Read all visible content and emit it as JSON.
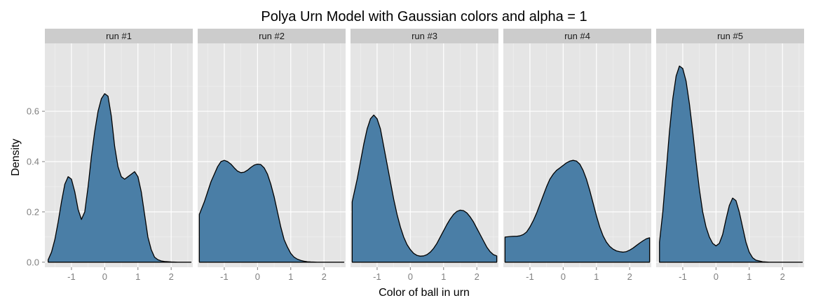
{
  "chart_data": {
    "type": "area",
    "title": "Polya Urn Model with Gaussian colors and alpha = 1",
    "xlabel": "Color of ball in urn",
    "ylabel": "Density",
    "xlim": [
      -1.8,
      2.65
    ],
    "ylim": [
      -0.02,
      0.87
    ],
    "x_ticks": [
      -1,
      0,
      1,
      2
    ],
    "x_tick_labels": [
      "-1",
      "0",
      "1",
      "2"
    ],
    "y_ticks": [
      0.0,
      0.2,
      0.4,
      0.6
    ],
    "y_tick_labels": [
      "0.0",
      "0.2",
      "0.4",
      "0.6"
    ],
    "grid": true,
    "fill_color": "#4a7ea6",
    "line_color": "#000000",
    "panel_bg": "#e5e5e5",
    "strip_bg": "#cccccc",
    "panels": [
      {
        "label": "run #1",
        "x": [
          -1.7,
          -1.6,
          -1.5,
          -1.4,
          -1.3,
          -1.2,
          -1.1,
          -1.0,
          -0.9,
          -0.8,
          -0.7,
          -0.6,
          -0.5,
          -0.4,
          -0.3,
          -0.2,
          -0.1,
          0.0,
          0.1,
          0.2,
          0.3,
          0.4,
          0.5,
          0.6,
          0.7,
          0.8,
          0.9,
          1.0,
          1.1,
          1.2,
          1.3,
          1.4,
          1.5,
          1.6,
          1.7,
          1.8,
          2.0,
          2.2,
          2.4,
          2.6
        ],
        "y": [
          0.01,
          0.04,
          0.09,
          0.16,
          0.24,
          0.31,
          0.34,
          0.33,
          0.28,
          0.21,
          0.17,
          0.2,
          0.3,
          0.42,
          0.52,
          0.6,
          0.65,
          0.67,
          0.66,
          0.58,
          0.46,
          0.38,
          0.34,
          0.33,
          0.34,
          0.35,
          0.36,
          0.34,
          0.28,
          0.19,
          0.1,
          0.05,
          0.02,
          0.01,
          0.005,
          0.003,
          0.001,
          0.0,
          0.0,
          0.0
        ]
      },
      {
        "label": "run #2",
        "x": [
          -1.75,
          -1.6,
          -1.5,
          -1.4,
          -1.3,
          -1.2,
          -1.1,
          -1.0,
          -0.9,
          -0.8,
          -0.7,
          -0.6,
          -0.5,
          -0.4,
          -0.3,
          -0.2,
          -0.1,
          0.0,
          0.1,
          0.2,
          0.3,
          0.4,
          0.5,
          0.6,
          0.7,
          0.8,
          0.9,
          1.0,
          1.1,
          1.2,
          1.3,
          1.4,
          1.5,
          1.6,
          1.8,
          2.0,
          2.2,
          2.4,
          2.6
        ],
        "y": [
          0.19,
          0.24,
          0.28,
          0.32,
          0.35,
          0.38,
          0.4,
          0.405,
          0.4,
          0.39,
          0.375,
          0.362,
          0.356,
          0.358,
          0.366,
          0.377,
          0.386,
          0.39,
          0.388,
          0.375,
          0.35,
          0.31,
          0.26,
          0.2,
          0.14,
          0.09,
          0.06,
          0.035,
          0.02,
          0.012,
          0.007,
          0.004,
          0.002,
          0.001,
          0.0,
          0.0,
          0.0,
          0.0,
          0.0
        ]
      },
      {
        "label": "run #3",
        "x": [
          -1.75,
          -1.6,
          -1.5,
          -1.4,
          -1.3,
          -1.2,
          -1.1,
          -1.0,
          -0.9,
          -0.8,
          -0.7,
          -0.6,
          -0.5,
          -0.4,
          -0.3,
          -0.2,
          -0.1,
          0.0,
          0.1,
          0.2,
          0.3,
          0.4,
          0.5,
          0.6,
          0.7,
          0.8,
          0.9,
          1.0,
          1.1,
          1.2,
          1.3,
          1.4,
          1.5,
          1.6,
          1.7,
          1.8,
          1.9,
          2.0,
          2.1,
          2.2,
          2.3,
          2.4,
          2.5,
          2.6
        ],
        "y": [
          0.24,
          0.33,
          0.4,
          0.47,
          0.53,
          0.57,
          0.585,
          0.57,
          0.53,
          0.46,
          0.39,
          0.32,
          0.25,
          0.19,
          0.14,
          0.1,
          0.07,
          0.05,
          0.035,
          0.027,
          0.024,
          0.025,
          0.03,
          0.04,
          0.055,
          0.075,
          0.1,
          0.125,
          0.15,
          0.172,
          0.19,
          0.202,
          0.207,
          0.205,
          0.196,
          0.18,
          0.16,
          0.135,
          0.11,
          0.085,
          0.06,
          0.042,
          0.03,
          0.025
        ]
      },
      {
        "label": "run #4",
        "x": [
          -1.75,
          -1.6,
          -1.5,
          -1.4,
          -1.3,
          -1.2,
          -1.1,
          -1.0,
          -0.9,
          -0.8,
          -0.7,
          -0.6,
          -0.5,
          -0.4,
          -0.3,
          -0.2,
          -0.1,
          0.0,
          0.1,
          0.2,
          0.3,
          0.4,
          0.5,
          0.6,
          0.7,
          0.8,
          0.9,
          1.0,
          1.1,
          1.2,
          1.3,
          1.4,
          1.5,
          1.6,
          1.7,
          1.8,
          1.9,
          2.0,
          2.1,
          2.2,
          2.3,
          2.4,
          2.5,
          2.6
        ],
        "y": [
          0.1,
          0.102,
          0.103,
          0.103,
          0.105,
          0.11,
          0.12,
          0.14,
          0.165,
          0.195,
          0.23,
          0.265,
          0.3,
          0.33,
          0.35,
          0.365,
          0.375,
          0.385,
          0.395,
          0.402,
          0.405,
          0.402,
          0.39,
          0.365,
          0.33,
          0.285,
          0.235,
          0.185,
          0.14,
          0.105,
          0.08,
          0.063,
          0.052,
          0.045,
          0.042,
          0.04,
          0.042,
          0.048,
          0.056,
          0.066,
          0.076,
          0.085,
          0.093,
          0.097
        ]
      },
      {
        "label": "run #5",
        "x": [
          -1.7,
          -1.6,
          -1.5,
          -1.4,
          -1.3,
          -1.2,
          -1.1,
          -1.0,
          -0.9,
          -0.8,
          -0.7,
          -0.6,
          -0.5,
          -0.4,
          -0.3,
          -0.2,
          -0.1,
          0.0,
          0.1,
          0.2,
          0.3,
          0.4,
          0.5,
          0.6,
          0.7,
          0.8,
          0.9,
          1.0,
          1.1,
          1.2,
          1.4,
          1.6,
          1.8,
          2.0,
          2.2,
          2.4,
          2.6
        ],
        "y": [
          0.08,
          0.2,
          0.36,
          0.52,
          0.65,
          0.74,
          0.78,
          0.77,
          0.72,
          0.63,
          0.52,
          0.4,
          0.29,
          0.2,
          0.14,
          0.1,
          0.075,
          0.065,
          0.075,
          0.11,
          0.17,
          0.225,
          0.255,
          0.245,
          0.2,
          0.14,
          0.08,
          0.04,
          0.018,
          0.008,
          0.002,
          0.0,
          0.0,
          0.0,
          0.0,
          0.0,
          0.0
        ]
      }
    ]
  }
}
